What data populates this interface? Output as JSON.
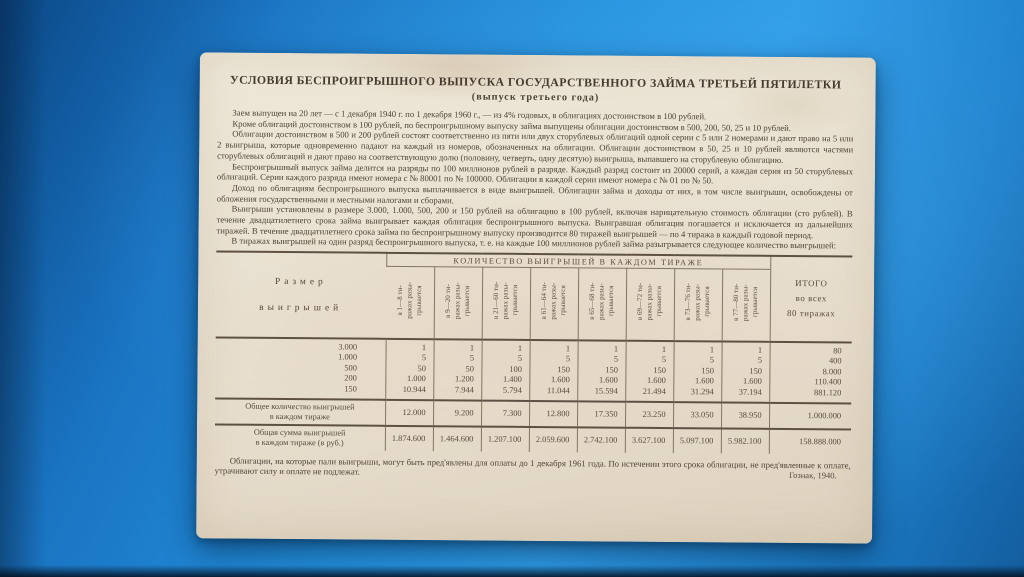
{
  "colors": {
    "background_blue": "#2390dd",
    "paper": "#e9e1d1",
    "ink": "#4c4136"
  },
  "document": {
    "title": "УСЛОВИЯ БЕСПРОИГРЫШНОГО ВЫПУСКА ГОСУДАРСТВЕННОГО ЗАЙМА ТРЕТЬЕЙ ПЯТИЛЕТКИ",
    "subtitle": "(выпуск третьего года)",
    "paragraphs": [
      "Заем выпущен на 20 лет — с 1 декабря 1940 г. по 1 декабря 1960 г., — из 4% годовых, в облигациях достоинством в 100 рублей.",
      "Кроме облигаций достоинством в 100 рублей, по беспроигрышному выпуску займа выпущены облигации достоинством в 500, 200, 50, 25 и 10 рублей.",
      "Облигации достоинством в 500 и 200 рублей состоят соответственно из пяти или двух сторублевых облигаций одной серии с 5 или 2 номерами и дают право на 5 или 2 выигрыша, которые одновременно падают на каждый из номеров, обозначенных на облигации. Облигации достоинством в 50, 25 и 10 рублей являются частями сторублевых облигаций и дают право на соответствующую долю (половину, четверть, одну десятую) выигрыша, выпавшего на сторублевую облигацию.",
      "Беспроигрышный выпуск займа делится на разряды по 100 миллионов рублей в разряде. Каждый разряд состоит из 20000 серий, а каждая серия из 50 сторублевых облигаций. Серии каждого разряда имеют номера с № 80001 по № 100000. Облигации в каждой серии имеют номера с № 01 по № 50.",
      "Доход по облигациям беспроигрышного выпуска выплачивается в виде выигрышей. Облигации займа и доходы от них, в том числе выигрыши, освобождены от обложения государственными и местными налогами и сборами.",
      "Выигрыши установлены в размере 3.000, 1.000, 500, 200 и 150 рублей на облигацию в 100 рублей, включая нарицательную стоимость облигации (сто рублей). В течение двадцатилетнего срока займа выигрывает каждая облигация беспроигрышного выпуска. Выигравшая облигация погашается и исключается из дальнейших тиражей. В течение двадцатилетнего срока займа по беспроигрышному выпуску производится 80 тиражей выигрышей — по 4 тиража в каждый годовой период.",
      "В тиражах выигрышей на один разряд беспроигрышного выпуска, т. е. на каждые 100 миллионов рублей займа разыгрывается следующее количество выигрышей:"
    ],
    "table": {
      "group_header": "КОЛИЧЕСТВО ВЫИГРЫШЕЙ В КАЖДОМ ТИРАЖЕ",
      "size_header": "Размер\nвыигрышей",
      "total_header": "ИТОГО\nво всех\n80 тиражах",
      "columns": [
        "в 1—8 ти-\nражах разы-\nгрывается",
        "в 9—20 ти-\nражах разы-\nгрывается",
        "в 21—60 ти-\nражах разы-\nгрывается",
        "в 61—64 ти-\nражах разы-\nгрывается",
        "в 65—68 ти-\nражах разы-\nгрывается",
        "в 69—72 ти-\nражах разы-\nгрывается",
        "в 73—76 ти-\nражах разы-\nгрывается",
        "в 77—80 ти-\nражах разы-\nгрывается"
      ],
      "rows": [
        {
          "size": "3.000",
          "values": [
            "1",
            "1",
            "1",
            "1",
            "1",
            "1",
            "1",
            "1"
          ],
          "total": "80"
        },
        {
          "size": "1.000",
          "values": [
            "5",
            "5",
            "5",
            "5",
            "5",
            "5",
            "5",
            "5"
          ],
          "total": "400"
        },
        {
          "size": "500",
          "values": [
            "50",
            "50",
            "100",
            "150",
            "150",
            "150",
            "150",
            "150"
          ],
          "total": "8.000"
        },
        {
          "size": "200",
          "values": [
            "1.000",
            "1.200",
            "1.400",
            "1.600",
            "1.600",
            "1.600",
            "1.600",
            "1.600"
          ],
          "total": "110.400"
        },
        {
          "size": "150",
          "values": [
            "10.944",
            "7.944",
            "5.794",
            "11.044",
            "15.594",
            "21.494",
            "31.294",
            "37.194"
          ],
          "total": "881.120"
        }
      ],
      "summary_rows": [
        {
          "label": "Общее количество выигрышей\nв каждом тираже",
          "values": [
            "12.000",
            "9.200",
            "7.300",
            "12.800",
            "17.350",
            "23.250",
            "33.050",
            "38.950"
          ],
          "total": "1.000.000"
        },
        {
          "label": "Общая сумма выигрышей\nв каждом тираже (в руб.)",
          "values": [
            "1.874.600",
            "1.464.600",
            "1.207.100",
            "2.059.600",
            "2.742.100",
            "3.627.100",
            "5.097.100",
            "5.982.100"
          ],
          "total": "158.888.000"
        }
      ]
    },
    "footer": "Облигации, на которые пали выигрыши, могут быть пред'явлены для оплаты до 1 декабря 1961 года. По истечении этого срока облигации, не пред'явленные к оплате, утрачивают силу и оплате не подлежат.",
    "imprint": "Гознак, 1940."
  }
}
